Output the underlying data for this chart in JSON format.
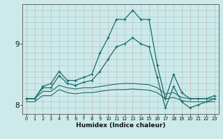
{
  "xlabel": "Humidex (Indice chaleur)",
  "background_color": "#cceaea",
  "grid_color": "#aacccc",
  "line_color": "#1a6b6b",
  "x_values": [
    0,
    1,
    2,
    3,
    4,
    5,
    6,
    7,
    8,
    9,
    10,
    11,
    12,
    13,
    14,
    15,
    16,
    17,
    18,
    19,
    20,
    21,
    22,
    23
  ],
  "series1": [
    8.1,
    8.1,
    8.3,
    8.35,
    8.55,
    8.4,
    8.4,
    8.45,
    8.5,
    8.85,
    9.1,
    9.4,
    9.4,
    9.55,
    9.4,
    9.4,
    8.65,
    8.1,
    8.5,
    8.2,
    8.1,
    8.1,
    8.1,
    8.15
  ],
  "series2": [
    8.1,
    8.1,
    8.28,
    8.28,
    8.48,
    8.35,
    8.32,
    8.37,
    8.4,
    8.55,
    8.75,
    8.95,
    9.0,
    9.1,
    9.0,
    8.95,
    8.45,
    7.95,
    8.3,
    8.05,
    7.95,
    8.0,
    8.05,
    8.1
  ],
  "series3": [
    8.1,
    8.1,
    8.22,
    8.22,
    8.32,
    8.28,
    8.26,
    8.28,
    8.28,
    8.3,
    8.32,
    8.34,
    8.35,
    8.35,
    8.34,
    8.33,
    8.28,
    8.18,
    8.2,
    8.12,
    8.1,
    8.1,
    8.1,
    8.1
  ],
  "series4": [
    8.05,
    8.05,
    8.15,
    8.15,
    8.25,
    8.2,
    8.18,
    8.2,
    8.2,
    8.22,
    8.24,
    8.25,
    8.25,
    8.26,
    8.25,
    8.24,
    8.2,
    8.1,
    8.12,
    8.07,
    8.05,
    8.05,
    8.05,
    8.05
  ],
  "ylim": [
    7.85,
    9.65
  ],
  "yticks": [
    8,
    9
  ],
  "xlim": [
    -0.5,
    23.5
  ],
  "ygrid_step": 0.1
}
